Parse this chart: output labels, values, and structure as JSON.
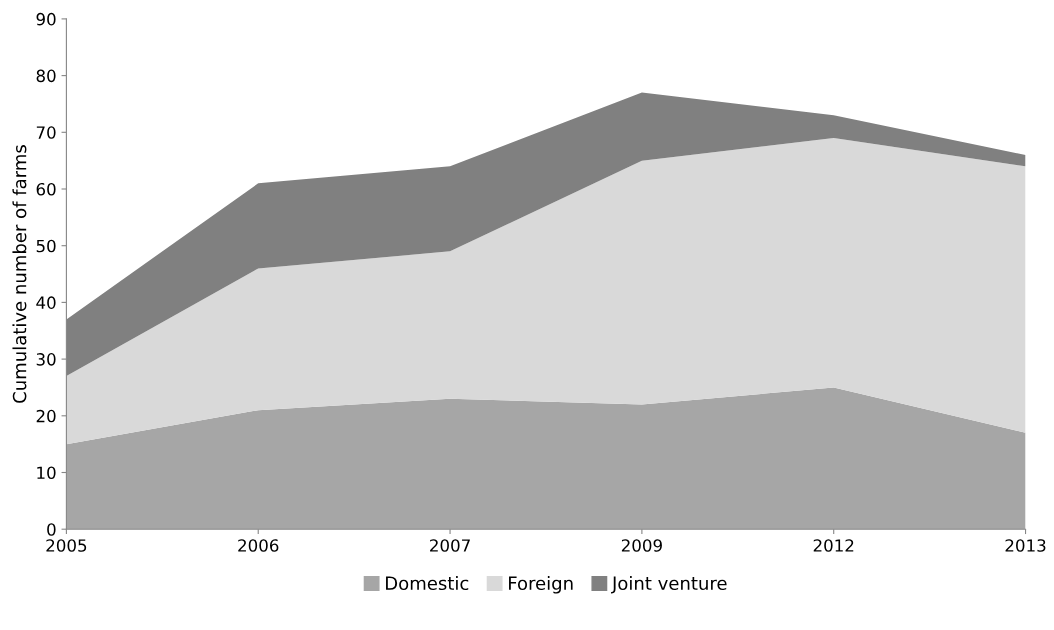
{
  "chart_data": {
    "type": "area",
    "stacked": true,
    "ylabel": "Cumulative number of farms",
    "categories": [
      "2005",
      "2006",
      "2007",
      "2009",
      "2012",
      "2013"
    ],
    "series": [
      {
        "name": "Domestic",
        "color": "#a6a6a6",
        "values": [
          15,
          21,
          23,
          22,
          25,
          17
        ]
      },
      {
        "name": "Foreign",
        "color": "#d9d9d9",
        "values": [
          12,
          25,
          26,
          43,
          44,
          47
        ]
      },
      {
        "name": "Joint venture",
        "color": "#808080",
        "values": [
          10,
          15,
          15,
          12,
          4,
          2
        ]
      }
    ],
    "ylim": [
      0,
      90
    ],
    "yticks": [
      0,
      10,
      20,
      30,
      40,
      50,
      60,
      70,
      80,
      90
    ],
    "grid": false,
    "legend": "bottom"
  }
}
